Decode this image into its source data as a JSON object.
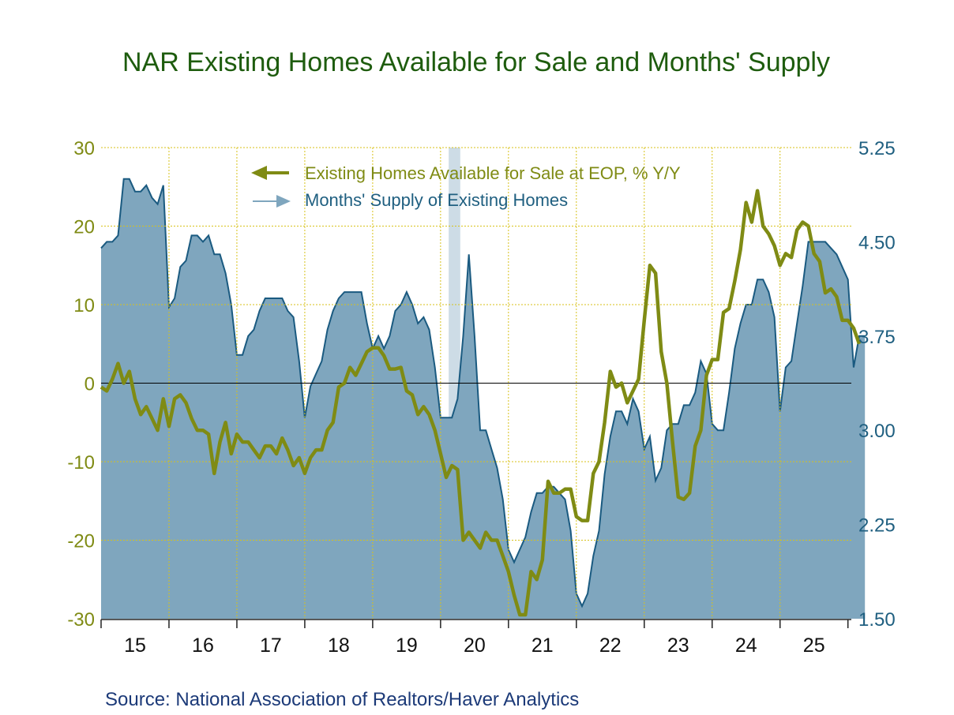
{
  "chart_data": {
    "type": "line",
    "title": "NAR Existing Homes Available for Sale and Months' Supply",
    "source": "Source:  National Association of Realtors/Haver Analytics",
    "x_labels": [
      "15",
      "16",
      "17",
      "18",
      "19",
      "20",
      "21",
      "22",
      "23",
      "24",
      "25"
    ],
    "x_start_year": 2015,
    "x_end_year": 2026.05,
    "left_axis": {
      "ylim": [
        -30,
        30
      ],
      "ticks": [
        30,
        20,
        10,
        0,
        -10,
        -20,
        -30
      ],
      "tick_labels": [
        "30",
        "20",
        "10",
        "0",
        "-10",
        "-20",
        "-30"
      ]
    },
    "right_axis": {
      "ylim": [
        1.5,
        5.25
      ],
      "ticks": [
        5.25,
        4.5,
        3.75,
        3.0,
        2.25,
        1.5
      ],
      "tick_labels": [
        "5.25",
        "4.50",
        "3.75",
        "3.00",
        "2.25",
        "1.50"
      ]
    },
    "recession": {
      "start": 2020.12,
      "end": 2020.29
    },
    "colors": {
      "inventory_line": "#7f8b14",
      "supply_fill": "#7fa6be",
      "supply_line": "#1a5a80",
      "grid": "#d8c21a",
      "recession": "#cddce6",
      "title": "#1e5c0e"
    },
    "legend": [
      {
        "label": "Existing Homes Available for Sale at EOP, % Y/Y",
        "color": "#7f8b14"
      },
      {
        "label": "Months' Supply of Existing Homes",
        "color": "#1f5f80"
      }
    ],
    "series": [
      {
        "name": "Existing Homes Available for Sale at EOP, % Y/Y",
        "axis": "left",
        "start": 2015.0,
        "step": 0.0833333,
        "values": [
          -0.5,
          -1,
          0.5,
          2.5,
          0,
          1.5,
          -2,
          -4,
          -3,
          -4.5,
          -6,
          -2,
          -5.5,
          -2,
          -1.5,
          -2.5,
          -4.5,
          -6,
          -6,
          -6.5,
          -11.5,
          -7.5,
          -5,
          -9,
          -6.5,
          -7.5,
          -7.5,
          -8.5,
          -9.5,
          -8,
          -8,
          -9,
          -7,
          -8.5,
          -10.5,
          -9.5,
          -11.5,
          -9.5,
          -8.5,
          -8.5,
          -6,
          -5,
          -0.5,
          0,
          2,
          1,
          2.5,
          4,
          4.5,
          4.5,
          3.5,
          1.8,
          1.8,
          2,
          -1,
          -1.5,
          -4,
          -3,
          -4,
          -6,
          -9,
          -12,
          -10.5,
          -11,
          -20,
          -19,
          -20,
          -21,
          -19,
          -20,
          -20,
          -22,
          -24,
          -27,
          -29.5,
          -29.5,
          -24,
          -25,
          -22.5,
          -12.5,
          -14,
          -14,
          -13.5,
          -13.5,
          -17,
          -17.5,
          -17.5,
          -11.5,
          -10,
          -5,
          1.5,
          -0.5,
          0,
          -2.5,
          -1,
          0.5,
          8,
          15,
          14,
          4,
          0,
          -7.5,
          -14.5,
          -14.8,
          -14,
          -8,
          -6,
          1,
          3,
          3,
          9,
          9.5,
          13,
          17,
          23,
          20.5,
          24.5,
          20,
          19,
          17.5,
          15,
          16.5,
          16,
          19.5,
          20.5,
          20,
          16.5,
          15.5,
          11.5,
          12,
          11,
          8,
          8,
          7,
          5
        ]
      },
      {
        "name": "Months' Supply of Existing Homes",
        "axis": "right",
        "start": 2015.0,
        "step": 0.0833333,
        "values": [
          4.45,
          4.5,
          4.5,
          4.55,
          5.0,
          5.0,
          4.9,
          4.9,
          4.95,
          4.85,
          4.8,
          4.95,
          3.98,
          4.05,
          4.3,
          4.35,
          4.55,
          4.55,
          4.5,
          4.55,
          4.4,
          4.4,
          4.25,
          4.0,
          3.6,
          3.6,
          3.75,
          3.8,
          3.95,
          4.05,
          4.05,
          4.05,
          4.05,
          3.95,
          3.9,
          3.55,
          3.1,
          3.35,
          3.45,
          3.55,
          3.8,
          3.95,
          4.05,
          4.1,
          4.1,
          4.1,
          4.1,
          3.85,
          3.65,
          3.75,
          3.65,
          3.75,
          3.95,
          4.0,
          4.1,
          4.0,
          3.85,
          3.9,
          3.8,
          3.5,
          3.1,
          3.1,
          3.1,
          3.25,
          3.75,
          4.4,
          3.75,
          3.0,
          3.0,
          2.85,
          2.7,
          2.45,
          2.05,
          1.95,
          2.05,
          2.15,
          2.35,
          2.5,
          2.5,
          2.55,
          2.55,
          2.5,
          2.45,
          2.2,
          1.7,
          1.6,
          1.7,
          2.0,
          2.2,
          2.65,
          2.95,
          3.15,
          3.15,
          3.05,
          3.25,
          3.15,
          2.85,
          2.95,
          2.6,
          2.7,
          3.0,
          3.05,
          3.05,
          3.2,
          3.2,
          3.3,
          3.55,
          3.45,
          3.05,
          3.0,
          3.0,
          3.3,
          3.65,
          3.85,
          4.0,
          4.0,
          4.2,
          4.2,
          4.1,
          3.9,
          3.15,
          3.5,
          3.55,
          3.85,
          4.15,
          4.5,
          4.5,
          4.5,
          4.5,
          4.45,
          4.4,
          4.3,
          4.2,
          3.5,
          3.75,
          3.75
        ]
      }
    ]
  }
}
